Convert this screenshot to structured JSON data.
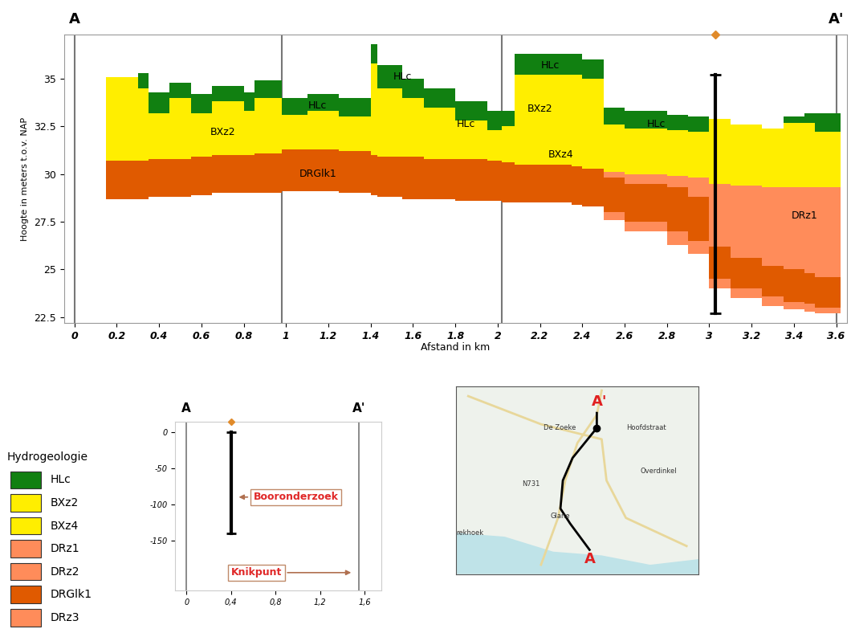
{
  "chart_data": [
    {
      "type": "cross_section",
      "title_left": "A",
      "title_right": "A'",
      "x_label": "Afstand in km",
      "y_label": "Hoogte in meters t.o.v. NAP",
      "xlim": [
        -0.05,
        3.65
      ],
      "ylim": [
        22.2,
        37.3
      ],
      "xticks": [
        0,
        0.2,
        0.4,
        0.6,
        0.8,
        1,
        1.2,
        1.4,
        1.6,
        1.8,
        2,
        2.2,
        2.4,
        2.6,
        2.8,
        3,
        3.2,
        3.4,
        3.6
      ],
      "yticks": [
        22.5,
        25,
        27.5,
        30,
        32.5,
        35
      ],
      "vlines": [
        0,
        0.98,
        2.02,
        3.6
      ],
      "column_edges": [
        0.15,
        0.3,
        0.35,
        0.45,
        0.55,
        0.65,
        0.8,
        0.85,
        0.98,
        1.1,
        1.25,
        1.4,
        1.43,
        1.55,
        1.65,
        1.8,
        1.95,
        2.02,
        2.08,
        2.35,
        2.4,
        2.5,
        2.6,
        2.8,
        2.9,
        3.0,
        3.1,
        3.25,
        3.35,
        3.45,
        3.5,
        3.62
      ],
      "series": [
        {
          "name": "HLc",
          "color": "#118011",
          "top": [
            null,
            35.3,
            34.3,
            34.8,
            34.2,
            34.6,
            34.3,
            34.9,
            34.0,
            34.2,
            34.0,
            36.8,
            35.7,
            35.0,
            34.5,
            33.8,
            33.3,
            33.3,
            36.3,
            36.3,
            36.0,
            33.5,
            33.3,
            33.1,
            33.0,
            null,
            null,
            null,
            33.0,
            33.2,
            33.2
          ],
          "bottom": [
            null,
            34.5,
            33.2,
            34.0,
            33.2,
            33.8,
            33.3,
            34.0,
            33.1,
            33.3,
            33.0,
            35.8,
            34.5,
            34.0,
            33.5,
            32.8,
            32.3,
            32.5,
            35.2,
            35.2,
            35.0,
            32.6,
            32.4,
            32.3,
            32.2,
            null,
            null,
            null,
            32.7,
            32.7,
            32.2
          ]
        },
        {
          "name": "BXz2",
          "color": "#ffee00",
          "top": [
            35.1,
            34.5,
            33.2,
            34.0,
            33.2,
            33.8,
            33.3,
            34.0,
            33.1,
            33.3,
            33.0,
            35.8,
            34.5,
            34.0,
            33.5,
            32.8,
            32.3,
            32.5,
            35.2,
            35.2,
            35.0,
            null,
            null,
            null,
            null,
            null,
            null,
            null,
            null,
            null,
            null
          ],
          "bottom": [
            30.7,
            30.7,
            30.8,
            30.8,
            30.9,
            31.0,
            31.0,
            31.1,
            31.3,
            31.3,
            31.2,
            31.0,
            30.9,
            30.9,
            30.8,
            30.8,
            30.7,
            30.6,
            32.0,
            32.0,
            32.0,
            null,
            null,
            null,
            null,
            null,
            null,
            null,
            null,
            null,
            null
          ]
        },
        {
          "name": "BXz4",
          "color": "#ffee00",
          "top": [
            null,
            null,
            null,
            null,
            null,
            null,
            null,
            null,
            null,
            null,
            null,
            null,
            null,
            null,
            null,
            null,
            null,
            null,
            32.0,
            32.0,
            32.0,
            32.6,
            32.4,
            32.3,
            32.2,
            32.9,
            32.6,
            32.4,
            32.7,
            32.7,
            32.2
          ],
          "bottom": [
            null,
            null,
            null,
            null,
            null,
            null,
            null,
            null,
            null,
            null,
            null,
            null,
            null,
            null,
            null,
            null,
            null,
            null,
            30.5,
            30.4,
            30.3,
            30.1,
            30.0,
            29.9,
            29.8,
            29.5,
            29.4,
            29.3,
            29.3,
            29.3,
            29.3
          ]
        },
        {
          "name": "DRz1",
          "color": "#ff8c5a",
          "top": [
            null,
            null,
            null,
            null,
            null,
            null,
            null,
            null,
            null,
            null,
            null,
            null,
            null,
            null,
            null,
            null,
            null,
            null,
            null,
            null,
            null,
            30.1,
            30.0,
            29.9,
            29.8,
            29.5,
            29.4,
            29.3,
            29.3,
            29.3,
            29.3
          ],
          "bottom": [
            null,
            null,
            null,
            null,
            null,
            null,
            null,
            null,
            null,
            null,
            null,
            null,
            null,
            null,
            null,
            null,
            null,
            null,
            null,
            null,
            null,
            29.8,
            29.5,
            29.3,
            28.8,
            26.2,
            25.6,
            25.2,
            25.0,
            24.8,
            24.6
          ]
        },
        {
          "name": "DRGlk1",
          "color": "#e05a00",
          "top": [
            30.7,
            30.7,
            30.8,
            30.8,
            30.9,
            31.0,
            31.0,
            31.1,
            31.3,
            31.3,
            31.2,
            31.0,
            30.9,
            30.9,
            30.8,
            30.8,
            30.7,
            30.6,
            30.5,
            30.4,
            30.3,
            29.8,
            29.5,
            29.3,
            28.8,
            26.2,
            25.6,
            25.2,
            25.0,
            24.8,
            24.6
          ],
          "bottom": [
            28.7,
            28.7,
            28.8,
            28.8,
            28.9,
            29.0,
            29.0,
            29.0,
            29.1,
            29.1,
            29.0,
            28.9,
            28.8,
            28.7,
            28.7,
            28.6,
            28.6,
            28.5,
            28.5,
            28.4,
            28.3,
            28.0,
            27.5,
            27.0,
            26.5,
            24.5,
            24.0,
            23.6,
            23.3,
            23.2,
            23.0
          ]
        },
        {
          "name": "DRz3",
          "color": "#ff8c5a",
          "top": [
            null,
            null,
            null,
            null,
            null,
            null,
            null,
            null,
            null,
            null,
            null,
            null,
            null,
            null,
            null,
            null,
            null,
            null,
            null,
            null,
            null,
            28.0,
            27.5,
            27.0,
            26.5,
            24.5,
            24.0,
            23.6,
            23.3,
            23.2,
            23.0
          ],
          "bottom": [
            null,
            null,
            null,
            null,
            null,
            null,
            null,
            null,
            null,
            null,
            null,
            null,
            null,
            null,
            null,
            null,
            null,
            null,
            null,
            null,
            null,
            27.6,
            27.0,
            26.3,
            25.8,
            24.0,
            23.5,
            23.1,
            22.9,
            22.8,
            22.7
          ]
        }
      ],
      "layer_labels": [
        {
          "text": "BXz2",
          "x": 0.7,
          "y": 32.2
        },
        {
          "text": "HLc",
          "x": 1.15,
          "y": 33.6
        },
        {
          "text": "DRGlk1",
          "x": 1.15,
          "y": 30.0
        },
        {
          "text": "HLc",
          "x": 1.55,
          "y": 35.1
        },
        {
          "text": "HLc",
          "x": 1.85,
          "y": 32.6
        },
        {
          "text": "HLc",
          "x": 2.25,
          "y": 35.7
        },
        {
          "text": "BXz2",
          "x": 2.2,
          "y": 33.4
        },
        {
          "text": "BXz4",
          "x": 2.3,
          "y": 31.0
        },
        {
          "text": "HLc",
          "x": 2.75,
          "y": 32.6
        },
        {
          "text": "DRz1",
          "x": 3.45,
          "y": 27.8
        }
      ],
      "borehole": {
        "x": 3.03,
        "top": 35.2,
        "bottom": 22.7,
        "color": "#000000",
        "marker_color": "#e08a2a"
      }
    },
    {
      "type": "borehole_overview",
      "title_left": "A",
      "title_right": "A'",
      "xlim": [
        -0.1,
        1.75
      ],
      "ylim": [
        -220,
        15
      ],
      "xticks": [
        0,
        {
          "value": 0.4,
          "label": "0,4"
        },
        {
          "value": 0.8,
          "label": "0,8"
        },
        {
          "value": 1.2,
          "label": "1,2"
        },
        {
          "value": 1.6,
          "label": "1,6"
        }
      ],
      "yticks": [
        0,
        -50,
        -100,
        -150
      ],
      "vlines": [
        0,
        1.55
      ],
      "borehole": {
        "x": 0.4,
        "top": 0,
        "bottom": -140,
        "color": "#000000",
        "marker_color": "#e08a2a"
      },
      "annotations": [
        {
          "text": "Booronderzoek",
          "x": 0.6,
          "y": -90,
          "target_x": 0.45,
          "target_y": -90
        },
        {
          "text": "Knikpunt",
          "x": 0.4,
          "y": -195,
          "target_x": 1.5,
          "target_y": -195
        }
      ]
    }
  ],
  "legend_panel": {
    "title": "Hydrogeologie",
    "entries": [
      {
        "name": "HLc",
        "color": "#118011"
      },
      {
        "name": "BXz2",
        "color": "#ffee00"
      },
      {
        "name": "BXz4",
        "color": "#ffee00"
      },
      {
        "name": "DRz1",
        "color": "#ff8c5a"
      },
      {
        "name": "DRz2",
        "color": "#ff8c5a"
      },
      {
        "name": "DRGlk1",
        "color": "#e05a00"
      },
      {
        "name": "DRz3",
        "color": "#ff8c5a"
      }
    ]
  },
  "map": {
    "labels": [
      "A'",
      "A",
      "De Zoeke",
      "N731",
      "Glane",
      "Overdinkel",
      "Hoofdstraat",
      "rekhoek"
    ]
  }
}
